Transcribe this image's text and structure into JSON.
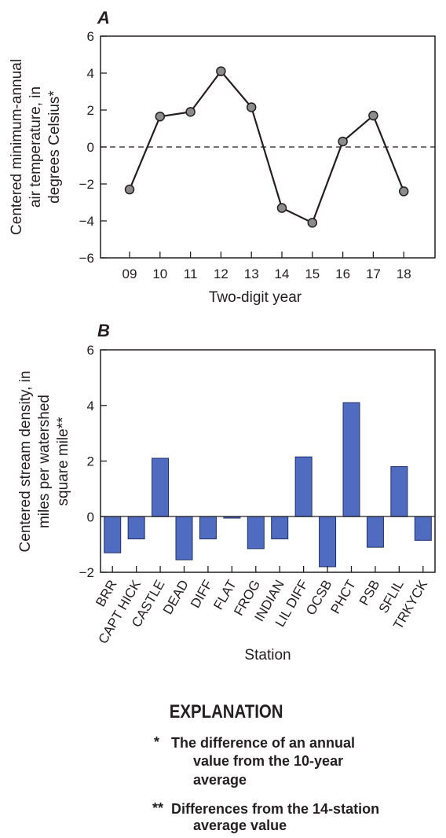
{
  "chart_data": [
    {
      "type": "line",
      "panel_label": "A",
      "x": [
        "09",
        "10",
        "11",
        "12",
        "13",
        "14",
        "15",
        "16",
        "17",
        "18"
      ],
      "values": [
        -2.3,
        1.65,
        1.9,
        4.1,
        2.15,
        -3.3,
        -4.1,
        0.3,
        1.7,
        -2.4
      ],
      "xlabel": "Two-digit year",
      "ylabel_lines": [
        "Centered  minimum-annual",
        "air temperature, in",
        "degrees Celsius*"
      ],
      "ylim": [
        -6,
        6
      ],
      "yticks": [
        "6",
        "4",
        "2",
        "0",
        "−2",
        "−4",
        "−6"
      ],
      "reference_line": 0,
      "colors": {
        "line": "#231f20",
        "marker": "#8c8c8c"
      }
    },
    {
      "type": "bar",
      "panel_label": "B",
      "categories": [
        "BRR",
        "CAPT HICK",
        "CASTLE",
        "DEAD",
        "DIFF",
        "FLAT",
        "FROG",
        "INDIAN",
        "LIL DIFF",
        "OCSB",
        "PHCT",
        "PSB",
        "SFLIL",
        "TRKYCK"
      ],
      "values": [
        -1.3,
        -0.8,
        2.1,
        -1.55,
        -0.8,
        -0.05,
        -1.15,
        -0.8,
        2.15,
        -1.8,
        4.1,
        -1.1,
        1.8,
        -0.85
      ],
      "xlabel": "Station",
      "ylabel_lines": [
        "Centered stream density, in",
        "miles per watershed",
        "square mile**"
      ],
      "ylim": [
        -2,
        6
      ],
      "yticks": [
        "6",
        "4",
        "2",
        "0",
        "−2"
      ],
      "colors": {
        "bar": "#4f6cc1",
        "bar_edge": "#1f2f66"
      }
    }
  ],
  "explanation": {
    "title": "EXPLANATION",
    "notes": [
      {
        "mark": "*",
        "lines": [
          "The difference of an annual",
          "value from the 10-year",
          "average"
        ]
      },
      {
        "mark": "**",
        "lines": [
          "Differences from the 14-station",
          "average value"
        ]
      }
    ]
  }
}
